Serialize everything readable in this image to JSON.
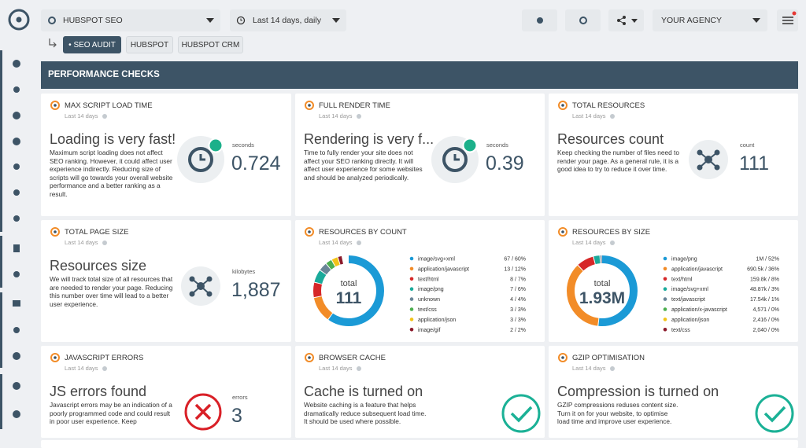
{
  "nav": {
    "account": "HUBSPOT SEO",
    "period": "Last 14 days, daily",
    "agency": "YOUR AGENCY"
  },
  "breadcrumbs": [
    "SEO AUDIT",
    "HUBSPOT",
    "HUBSPOT CRM"
  ],
  "section": {
    "title": "PERFORMANCE CHECKS"
  },
  "cards": [
    {
      "kind": "stat",
      "icon": "clock",
      "title": "MAX SCRIPT LOAD TIME",
      "period": "Last 14 days",
      "heading": "Loading is very fast!",
      "description": "Maximum script loading does not affect SEO ranking. However, it could affect user experience indirectly. Reducing size of scripts will go towards your overall website performance and a better ranking as a result.",
      "unit": "seconds",
      "value": 0.724
    },
    {
      "kind": "stat",
      "icon": "clock",
      "title": "FULL RENDER TIME",
      "period": "Last 14 days",
      "heading": "Rendering is very f...",
      "description": "Time to fully render your site does not affect your SEO ranking directly. It will affect user experience for some websites and should be analyzed periodically.",
      "unit": "seconds",
      "value": 0.39
    },
    {
      "kind": "stat",
      "icon": "network",
      "title": "TOTAL RESOURCES",
      "period": "Last 14 days",
      "heading": "Resources count",
      "description": "Keep checking the number of files need to render your page. As a general rule, it is a good idea to try to reduce it over time.",
      "unit": "count",
      "value": 111
    },
    {
      "kind": "stat",
      "icon": "network",
      "title": "TOTAL PAGE SIZE",
      "period": "Last 14 days",
      "heading": "Resources size",
      "description": "We will track total size of all resources that are needed to render your page. Reducing this number over time will lead to a better user experience.",
      "unit": "kilobytes",
      "value": "1,887"
    },
    {
      "kind": "donut",
      "title": "RESOURCES BY COUNT",
      "period": "Last 14 days",
      "total_label": "total",
      "total": 111,
      "items": [
        {
          "name": "image/svg+xml",
          "percent": 60,
          "label": "67 / 60%",
          "color": "#1b9ad6"
        },
        {
          "name": "application/javascript",
          "percent": 12,
          "label": "13 / 12%",
          "color": "#f28c28"
        },
        {
          "name": "text/html",
          "percent": 7,
          "label": "8 / 7%",
          "color": "#d62728"
        },
        {
          "name": "image/png",
          "percent": 6,
          "label": "7 / 6%",
          "color": "#1aaa9b"
        },
        {
          "name": "unknown",
          "percent": 4,
          "label": "4 / 4%",
          "color": "#6a8597"
        },
        {
          "name": "text/css",
          "percent": 3,
          "label": "3 / 3%",
          "color": "#4caf50"
        },
        {
          "name": "application/json",
          "percent": 3,
          "label": "3 / 3%",
          "color": "#f2c318"
        },
        {
          "name": "image/gif",
          "percent": 2,
          "label": "2 / 2%",
          "color": "#8b1a2b"
        }
      ]
    },
    {
      "kind": "donut",
      "title": "RESOURCES BY SIZE",
      "period": "Last 14 days",
      "total_label": "total",
      "total": "1.93M",
      "items": [
        {
          "name": "image/png",
          "percent": 52,
          "label": "1M / 52%",
          "color": "#1b9ad6"
        },
        {
          "name": "application/javascript",
          "percent": 36,
          "label": "690.5k / 36%",
          "color": "#f28c28"
        },
        {
          "name": "text/html",
          "percent": 8,
          "label": "159.8k / 8%",
          "color": "#d62728"
        },
        {
          "name": "image/svg+xml",
          "percent": 3,
          "label": "48.87k / 3%",
          "color": "#1aaa9b"
        },
        {
          "name": "text/javascript",
          "percent": 1,
          "label": "17.54k / 1%",
          "color": "#6a8597"
        },
        {
          "name": "application/x-javascript",
          "percent": 0,
          "label": "4,571 / 0%",
          "color": "#4caf50"
        },
        {
          "name": "application/json",
          "percent": 0,
          "label": "2,416 / 0%",
          "color": "#f2c318"
        },
        {
          "name": "text/css",
          "percent": 0,
          "label": "2,040 / 0%",
          "color": "#8b1a2b"
        }
      ]
    },
    {
      "kind": "stat",
      "icon": "error",
      "title": "JAVASCRIPT ERRORS",
      "period": "Last 14 days",
      "heading": "JS errors found",
      "description": "Javascript errors may be an indication of a poorly programmed code and could result in poor user experience. Keep",
      "unit": "errors",
      "value": 3
    },
    {
      "kind": "stat",
      "icon": "ok",
      "title": "BROWSER CACHE",
      "period": "Last 14 days",
      "heading": "Cache is turned on",
      "description": "Website caching is a feature that helps dramatically reduce subsequent load time. It should be used where possible."
    },
    {
      "kind": "stat",
      "icon": "ok",
      "title": "GZIP OPTIMISATION",
      "period": "Last 14 days",
      "heading": "Compression is turned on",
      "description": "GZIP compressions reduses content size. Turn it on for your website, to optimise load time and improve user experience."
    }
  ]
}
